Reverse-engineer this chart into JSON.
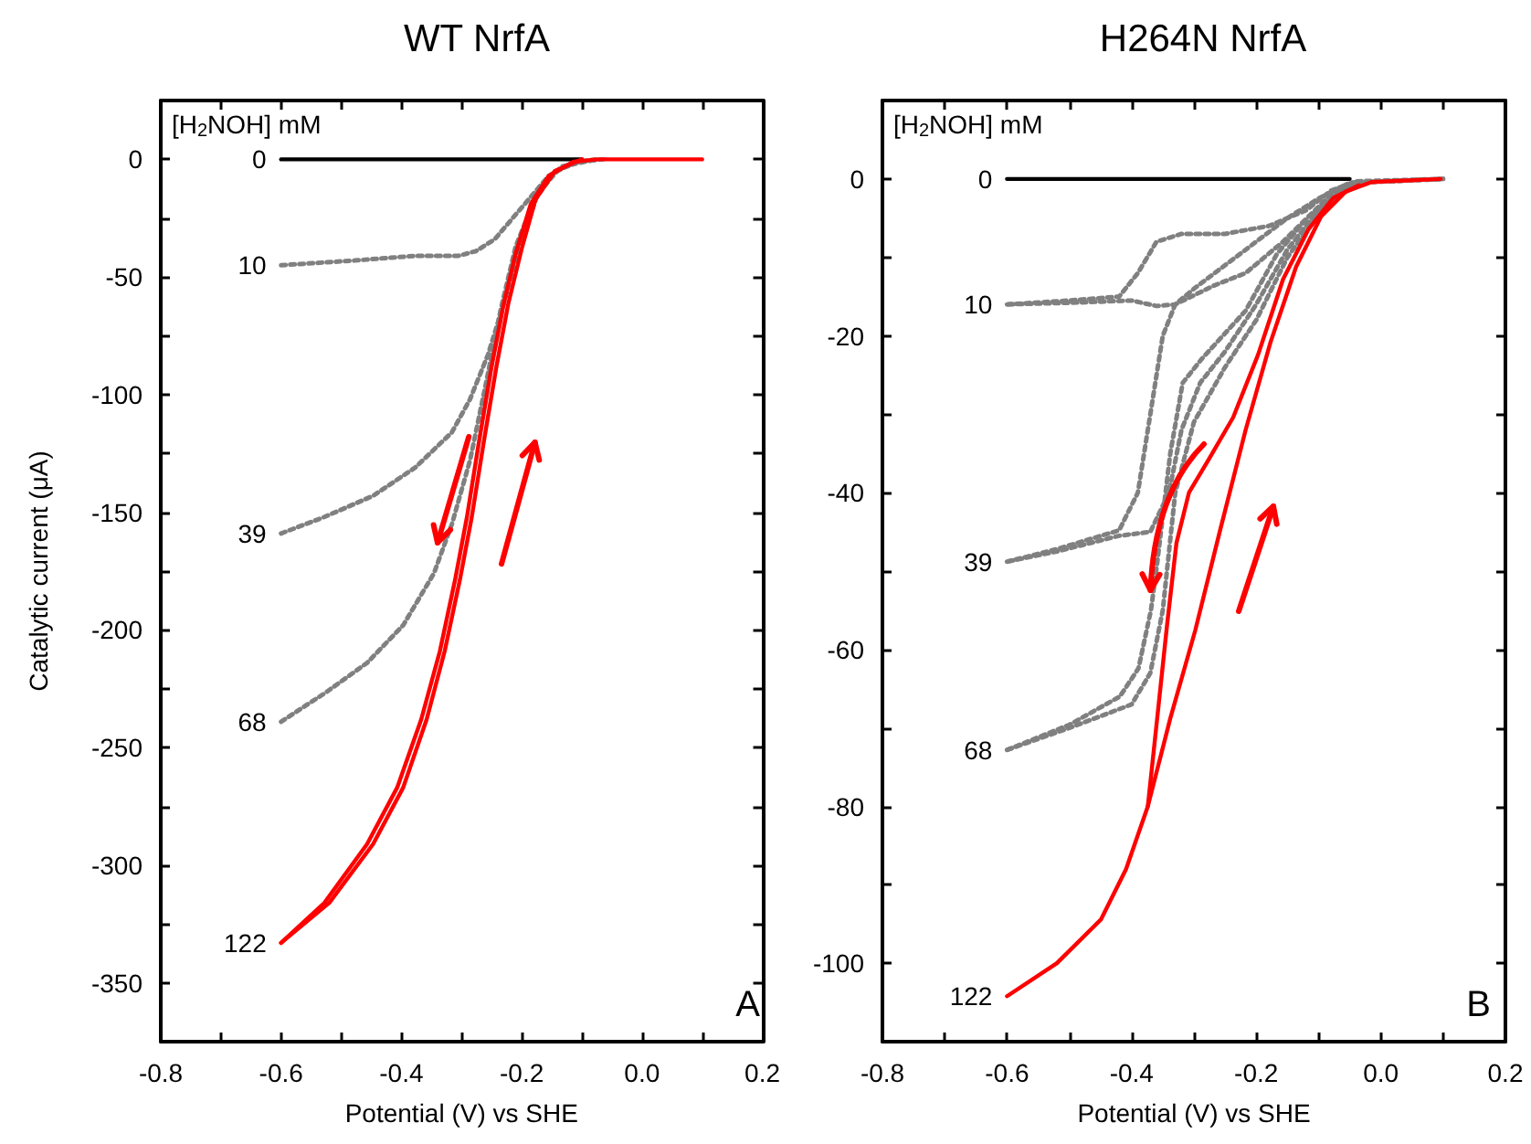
{
  "chart_data": [
    {
      "type": "line",
      "title": "WT NrfA",
      "xlabel": "Potential (V) vs SHE",
      "ylabel": "Catalytic current (μA)",
      "legend_title": "[H$_{2}$NOH] mM",
      "annotations": [
        "A"
      ],
      "xlim": [
        -0.8,
        0.2
      ],
      "ylim": [
        -375,
        25
      ],
      "xticks": [
        -0.8,
        {
          "value": -0.7,
          "label": null
        },
        -0.6,
        {
          "value": -0.5,
          "label": null
        },
        -0.4,
        {
          "value": -0.3,
          "label": null
        },
        -0.2,
        {
          "value": -0.1,
          "label": null
        },
        {
          "value": 0,
          "label": "0.0"
        },
        {
          "value": 0.1,
          "label": null
        },
        0.2
      ],
      "yticks": [
        -350,
        {
          "value": -325,
          "label": null
        },
        -300,
        {
          "value": -275,
          "label": null
        },
        -250,
        {
          "value": -225,
          "label": null
        },
        -200,
        {
          "value": -175,
          "label": null
        },
        -150,
        {
          "value": -125,
          "label": null
        },
        -100,
        {
          "value": -75,
          "label": null
        },
        -50,
        {
          "value": -25,
          "label": null
        },
        0
      ],
      "grid": false,
      "legend": false,
      "marker": "none",
      "series": [
        {
          "name": "0",
          "color": "#000000",
          "line_style": "solid",
          "x": [
            -0.6,
            -0.1
          ],
          "values": [
            0,
            0
          ]
        },
        {
          "name": "10",
          "color": "#808080",
          "line_style": "dotted",
          "x": [
            -0.6,
            -0.478,
            -0.376,
            -0.305,
            -0.276,
            -0.245,
            -0.215,
            -0.185,
            -0.155,
            -0.114,
            -0.074
          ],
          "values": [
            -45,
            -43,
            -41,
            -41,
            -39,
            -34,
            -25,
            -16,
            -7,
            -1.3,
            0
          ]
        },
        {
          "name": "39",
          "color": "#808080",
          "line_style": "dotted",
          "x": [
            -0.6,
            -0.528,
            -0.447,
            -0.377,
            -0.316,
            -0.286,
            -0.256,
            -0.23,
            -0.205,
            -0.175,
            -0.144,
            -0.104,
            -0.064
          ],
          "values": [
            -159,
            -152,
            -143,
            -131,
            -116,
            -102,
            -83,
            -61.5,
            -37,
            -16,
            -5,
            -1,
            0
          ]
        },
        {
          "name": "68",
          "color": "#808080",
          "line_style": "dotted",
          "x": [
            -0.6,
            -0.528,
            -0.457,
            -0.397,
            -0.346,
            -0.316,
            -0.286,
            -0.26,
            -0.235,
            -0.21,
            -0.175,
            -0.134,
            -0.074
          ],
          "values": [
            -239,
            -227,
            -214,
            -198,
            -176,
            -155,
            -128,
            -96,
            -64,
            -37,
            -15,
            -3,
            0
          ]
        },
        {
          "name": "122",
          "color": "#ff0000",
          "line_style": "solid",
          "x": [
            -0.6,
            -0.528,
            -0.457,
            -0.407,
            -0.367,
            -0.336,
            -0.311,
            -0.291,
            -0.271,
            -0.25,
            -0.23,
            -0.21,
            -0.185,
            -0.155,
            -0.114,
            -0.074,
            0.1
          ],
          "values": [
            -333,
            -316,
            -291,
            -267,
            -238,
            -209,
            -179,
            -152,
            -120,
            -88,
            -61.5,
            -40,
            -19,
            -7,
            -1,
            0,
            0
          ]
        },
        {
          "color": "#ff0000",
          "line_style": "solid",
          "x": [
            -0.1,
            -0.145,
            -0.177,
            -0.2,
            -0.222,
            -0.242,
            -0.263,
            -0.283,
            -0.303,
            -0.328,
            -0.358,
            -0.397,
            -0.447,
            -0.52,
            -0.6
          ],
          "values": [
            0,
            -5,
            -17,
            -38,
            -61,
            -88,
            -120,
            -152,
            -179,
            -209,
            -238,
            -267,
            -291,
            -316,
            -333
          ]
        }
      ]
    },
    {
      "type": "line",
      "title": "H264N NrfA",
      "xlabel": "Potential (V) vs SHE",
      "legend_title": "[H$_{2}$NOH] mM",
      "annotations": [
        "B"
      ],
      "xlim": [
        -0.8,
        0.2
      ],
      "ylim": [
        -110,
        10
      ],
      "xticks": [
        -0.8,
        {
          "value": -0.7,
          "label": null
        },
        -0.6,
        {
          "value": -0.5,
          "label": null
        },
        -0.4,
        {
          "value": -0.3,
          "label": null
        },
        -0.2,
        {
          "value": -0.1,
          "label": null
        },
        {
          "value": 0,
          "label": "0.0"
        },
        {
          "value": 0.1,
          "label": null
        },
        0.2
      ],
      "yticks": [
        -100,
        {
          "value": -90,
          "label": null
        },
        -80,
        {
          "value": -70,
          "label": null
        },
        -60,
        {
          "value": -50,
          "label": null
        },
        -40,
        {
          "value": -30,
          "label": null
        },
        -20,
        {
          "value": -10,
          "label": null
        },
        0
      ],
      "grid": false,
      "legend": false,
      "marker": "none",
      "series": [
        {
          "name": "0",
          "color": "#000000",
          "line_style": "solid",
          "x": [
            -0.6,
            -0.05
          ],
          "values": [
            0,
            0
          ]
        },
        {
          "name": "10",
          "color": "#808080",
          "line_style": "dotted",
          "x": [
            -0.6,
            -0.5,
            -0.42,
            -0.39,
            -0.36,
            -0.32,
            -0.25,
            -0.18,
            -0.12,
            -0.08,
            -0.04,
            0.1
          ],
          "values": [
            -16,
            -15.5,
            -15,
            -12,
            -8,
            -7,
            -7,
            -6,
            -4,
            -1.5,
            -0.3,
            0
          ]
        },
        {
          "color": "#808080",
          "line_style": "dotted",
          "x": [
            -0.04,
            -0.08,
            -0.116,
            -0.157,
            -0.217,
            -0.268,
            -0.33,
            -0.36,
            -0.4,
            -0.5,
            -0.6
          ],
          "values": [
            -0.4,
            -2,
            -4.8,
            -8,
            -12,
            -13.6,
            -16,
            -16.2,
            -15.5,
            -15.8,
            -16
          ]
        },
        {
          "name": "39",
          "color": "#808080",
          "line_style": "dotted",
          "x": [
            -0.6,
            -0.52,
            -0.42,
            -0.39,
            -0.37,
            -0.35,
            -0.33,
            -0.3,
            -0.25,
            -0.2,
            -0.15,
            -0.1,
            -0.05,
            0.1
          ],
          "values": [
            -48.8,
            -47.2,
            -44.8,
            -40,
            -30,
            -20,
            -16,
            -14,
            -11,
            -8,
            -5,
            -2.5,
            -0.5,
            0
          ]
        },
        {
          "color": "#808080",
          "line_style": "dotted",
          "x": [
            -0.05,
            -0.1,
            -0.15,
            -0.2,
            -0.25,
            -0.29,
            -0.32,
            -0.34,
            -0.37,
            -0.42,
            -0.52,
            -0.6
          ],
          "values": [
            -0.8,
            -4,
            -9,
            -16,
            -22,
            -26,
            -32,
            -40,
            -45,
            -45.5,
            -47.5,
            -48.8
          ]
        },
        {
          "name": "68",
          "color": "#808080",
          "line_style": "dotted",
          "x": [
            -0.6,
            -0.5,
            -0.419,
            -0.389,
            -0.369,
            -0.359,
            -0.338,
            -0.318,
            -0.288,
            -0.217,
            -0.167,
            -0.116,
            -0.066,
            -0.015,
            0.1
          ],
          "values": [
            -72.8,
            -69.6,
            -66,
            -62.4,
            -55,
            -49,
            -35,
            -26,
            -23,
            -16.8,
            -9.6,
            -4.8,
            -1.6,
            -0.4,
            0
          ]
        },
        {
          "color": "#808080",
          "line_style": "dotted",
          "x": [
            -0.05,
            -0.1,
            -0.15,
            -0.2,
            -0.25,
            -0.3,
            -0.33,
            -0.35,
            -0.37,
            -0.4,
            -0.5,
            -0.6
          ],
          "values": [
            -1,
            -4.5,
            -10,
            -18,
            -24,
            -31,
            -40,
            -55,
            -63,
            -67,
            -70,
            -72.8
          ]
        },
        {
          "name": "122",
          "color": "#ff0000",
          "line_style": "solid",
          "x": [
            -0.6,
            -0.52,
            -0.449,
            -0.409,
            -0.374,
            -0.338,
            -0.298,
            -0.258,
            -0.217,
            -0.177,
            -0.136,
            -0.096,
            -0.056,
            -0.015,
            0.096
          ],
          "values": [
            -104.2,
            -100,
            -94.4,
            -88,
            -80,
            -68.8,
            -57.6,
            -44.8,
            -32,
            -20.8,
            -11.2,
            -4.8,
            -1.6,
            -0.4,
            0
          ]
        },
        {
          "color": "#ff0000",
          "line_style": "solid",
          "x": [
            -0.035,
            -0.076,
            -0.116,
            -0.157,
            -0.197,
            -0.237,
            -0.278,
            -0.308,
            -0.328,
            -0.343,
            -0.359,
            -0.374
          ],
          "values": [
            -0.8,
            -2.4,
            -6.4,
            -12.8,
            -22.4,
            -30.4,
            -36,
            -40,
            -46.4,
            -56.8,
            -68.8,
            -80
          ]
        }
      ]
    }
  ]
}
